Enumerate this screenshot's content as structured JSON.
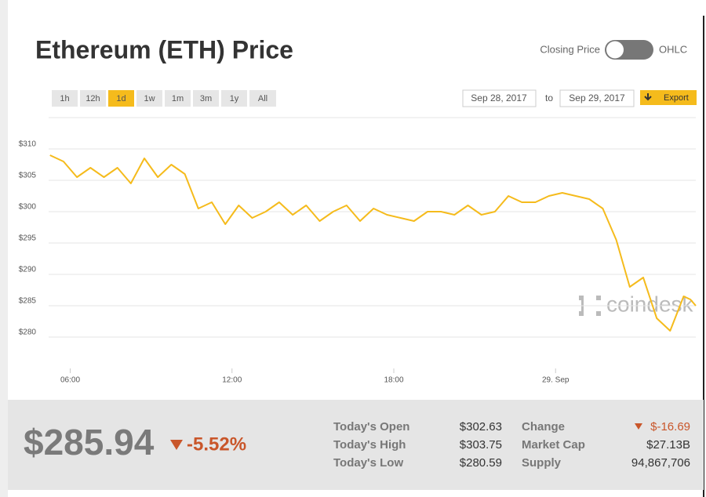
{
  "header": {
    "title": "Ethereum (ETH) Price",
    "toggle_left": "Closing Price",
    "toggle_right": "OHLC"
  },
  "range_buttons": [
    "1h",
    "12h",
    "1d",
    "1w",
    "1m",
    "3m",
    "1y",
    "All"
  ],
  "active_range": 2,
  "date_from": "Sep 28, 2017",
  "date_sep": "to",
  "date_to": "Sep 29, 2017",
  "export": "Export",
  "watermark": "coindesk",
  "chart_data": {
    "type": "line",
    "color": "#f5bb1c",
    "grid": true,
    "x": [
      5.25,
      5.75,
      6.25,
      6.75,
      7.25,
      7.75,
      8.25,
      8.75,
      9.25,
      9.75,
      10.25,
      10.75,
      11.25,
      11.75,
      12.25,
      12.75,
      13.25,
      13.75,
      14.25,
      14.75,
      15.25,
      15.75,
      16.25,
      16.75,
      17.25,
      17.75,
      18.25,
      18.75,
      19.25,
      19.75,
      20.25,
      20.75,
      21.25,
      21.75,
      22.25,
      22.75,
      23.25,
      23.75,
      24.25,
      24.75,
      25.25,
      25.75,
      26.25,
      26.75,
      27.25,
      27.75,
      28.25,
      28.75,
      29.0,
      29.2
    ],
    "series": [
      {
        "name": "ETH",
        "color": "#f5bb1c",
        "values": [
          309,
          308,
          305.5,
          307,
          305.5,
          307,
          304.5,
          308.5,
          305.5,
          307.5,
          306,
          300.5,
          301.5,
          298,
          301,
          299,
          300,
          301.5,
          299.5,
          301,
          298.5,
          300,
          301,
          298.5,
          300.5,
          299.5,
          299,
          298.5,
          300,
          300,
          299.5,
          301,
          299.5,
          300,
          302.5,
          301.5,
          301.5,
          302.5,
          303,
          302.5,
          302,
          300.5,
          295.5,
          288,
          289.5,
          283,
          281,
          286.5,
          286,
          285
        ]
      }
    ],
    "xlim": [
      5.2,
      29.2
    ],
    "xticks": [
      {
        "value": 6,
        "label": "06:00"
      },
      {
        "value": 12,
        "label": "12:00"
      },
      {
        "value": 18,
        "label": "18:00"
      },
      {
        "value": 24,
        "label": "29. Sep"
      }
    ],
    "ylim": [
      275,
      315
    ],
    "yticks": [
      {
        "value": 280,
        "label": "$280"
      },
      {
        "value": 285,
        "label": "$285"
      },
      {
        "value": 290,
        "label": "$290"
      },
      {
        "value": 295,
        "label": "$295"
      },
      {
        "value": 300,
        "label": "$300"
      },
      {
        "value": 305,
        "label": "$305"
      },
      {
        "value": 310,
        "label": "$310"
      }
    ]
  },
  "summary": {
    "price": "$285.94",
    "change_pct": "-5.52%"
  },
  "stats": [
    {
      "label": "Today's Open",
      "value": "$302.63"
    },
    {
      "label": "Today's High",
      "value": "$303.75"
    },
    {
      "label": "Today's Low",
      "value": "$280.59"
    },
    {
      "label": "Change",
      "value": "$-16.69"
    },
    {
      "label": "Market Cap",
      "value": "$27.13B"
    },
    {
      "label": "Supply",
      "value": "94,867,706"
    }
  ]
}
